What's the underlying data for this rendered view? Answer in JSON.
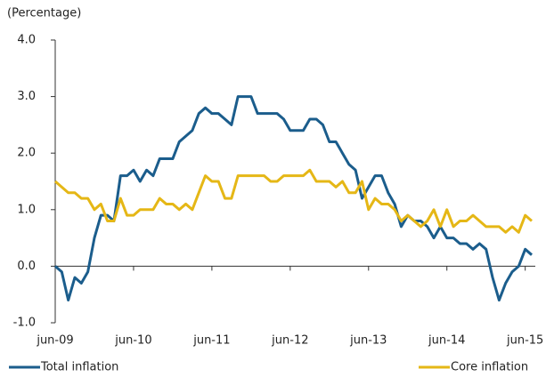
{
  "chart_data": {
    "type": "line",
    "y_label": "(Percentage)",
    "categories": [
      "jun-09",
      null,
      null,
      null,
      null,
      null,
      null,
      null,
      null,
      null,
      null,
      null,
      "jun-10",
      null,
      null,
      null,
      null,
      null,
      null,
      null,
      null,
      null,
      null,
      null,
      "jun-11",
      null,
      null,
      null,
      null,
      null,
      null,
      null,
      null,
      null,
      null,
      null,
      "jun-12",
      null,
      null,
      null,
      null,
      null,
      null,
      null,
      null,
      null,
      null,
      null,
      "jun-13",
      null,
      null,
      null,
      null,
      null,
      null,
      null,
      null,
      null,
      null,
      null,
      "jun-14",
      null,
      null,
      null,
      null,
      null,
      null,
      null,
      null,
      null,
      null,
      null,
      "jun-15",
      null
    ],
    "series": [
      {
        "name": "Total inflation",
        "color": "#1b5d8c",
        "values": [
          0,
          -0.1,
          -0.6,
          -0.2,
          -0.3,
          -0.1,
          0.5,
          0.9,
          0.9,
          0.8,
          1.6,
          1.6,
          1.7,
          1.5,
          1.7,
          1.6,
          1.9,
          1.9,
          1.9,
          2.2,
          2.3,
          2.4,
          2.7,
          2.8,
          2.7,
          2.7,
          2.6,
          2.5,
          3.0,
          3.0,
          3.0,
          2.7,
          2.7,
          2.7,
          2.7,
          2.6,
          2.4,
          2.4,
          2.4,
          2.6,
          2.6,
          2.5,
          2.2,
          2.2,
          2.0,
          1.8,
          1.7,
          1.2,
          1.4,
          1.6,
          1.6,
          1.3,
          1.1,
          0.7,
          0.9,
          0.8,
          0.8,
          0.7,
          0.5,
          0.7,
          0.5,
          0.5,
          0.4,
          0.4,
          0.3,
          0.4,
          0.3,
          -0.2,
          -0.6,
          -0.3,
          -0.1,
          0.0,
          0.3,
          0.2
        ]
      },
      {
        "name": "Core inflation",
        "color": "#e5b716",
        "values": [
          1.5,
          1.4,
          1.3,
          1.3,
          1.2,
          1.2,
          1.0,
          1.1,
          0.8,
          0.8,
          1.2,
          0.9,
          0.9,
          1.0,
          1.0,
          1.0,
          1.2,
          1.1,
          1.1,
          1.0,
          1.1,
          1.0,
          1.3,
          1.6,
          1.5,
          1.5,
          1.2,
          1.2,
          1.6,
          1.6,
          1.6,
          1.6,
          1.6,
          1.5,
          1.5,
          1.6,
          1.6,
          1.6,
          1.6,
          1.7,
          1.5,
          1.5,
          1.5,
          1.4,
          1.5,
          1.3,
          1.3,
          1.5,
          1.0,
          1.2,
          1.1,
          1.1,
          1.0,
          0.8,
          0.9,
          0.8,
          0.7,
          0.8,
          1.0,
          0.7,
          1.0,
          0.7,
          0.8,
          0.8,
          0.9,
          0.8,
          0.7,
          0.7,
          0.7,
          0.6,
          0.7,
          0.6,
          0.9,
          0.8
        ]
      }
    ],
    "ylim": [
      -1,
      4
    ],
    "yticks": [
      {
        "value": -1,
        "label": "-1.0"
      },
      {
        "value": 0,
        "label": "0.0"
      },
      {
        "value": 1,
        "label": "1.0"
      },
      {
        "value": 2,
        "label": "2.0"
      },
      {
        "value": 3,
        "label": "3.0"
      },
      {
        "value": 4,
        "label": "4.0"
      }
    ],
    "legend": "bottom",
    "grid": false
  }
}
